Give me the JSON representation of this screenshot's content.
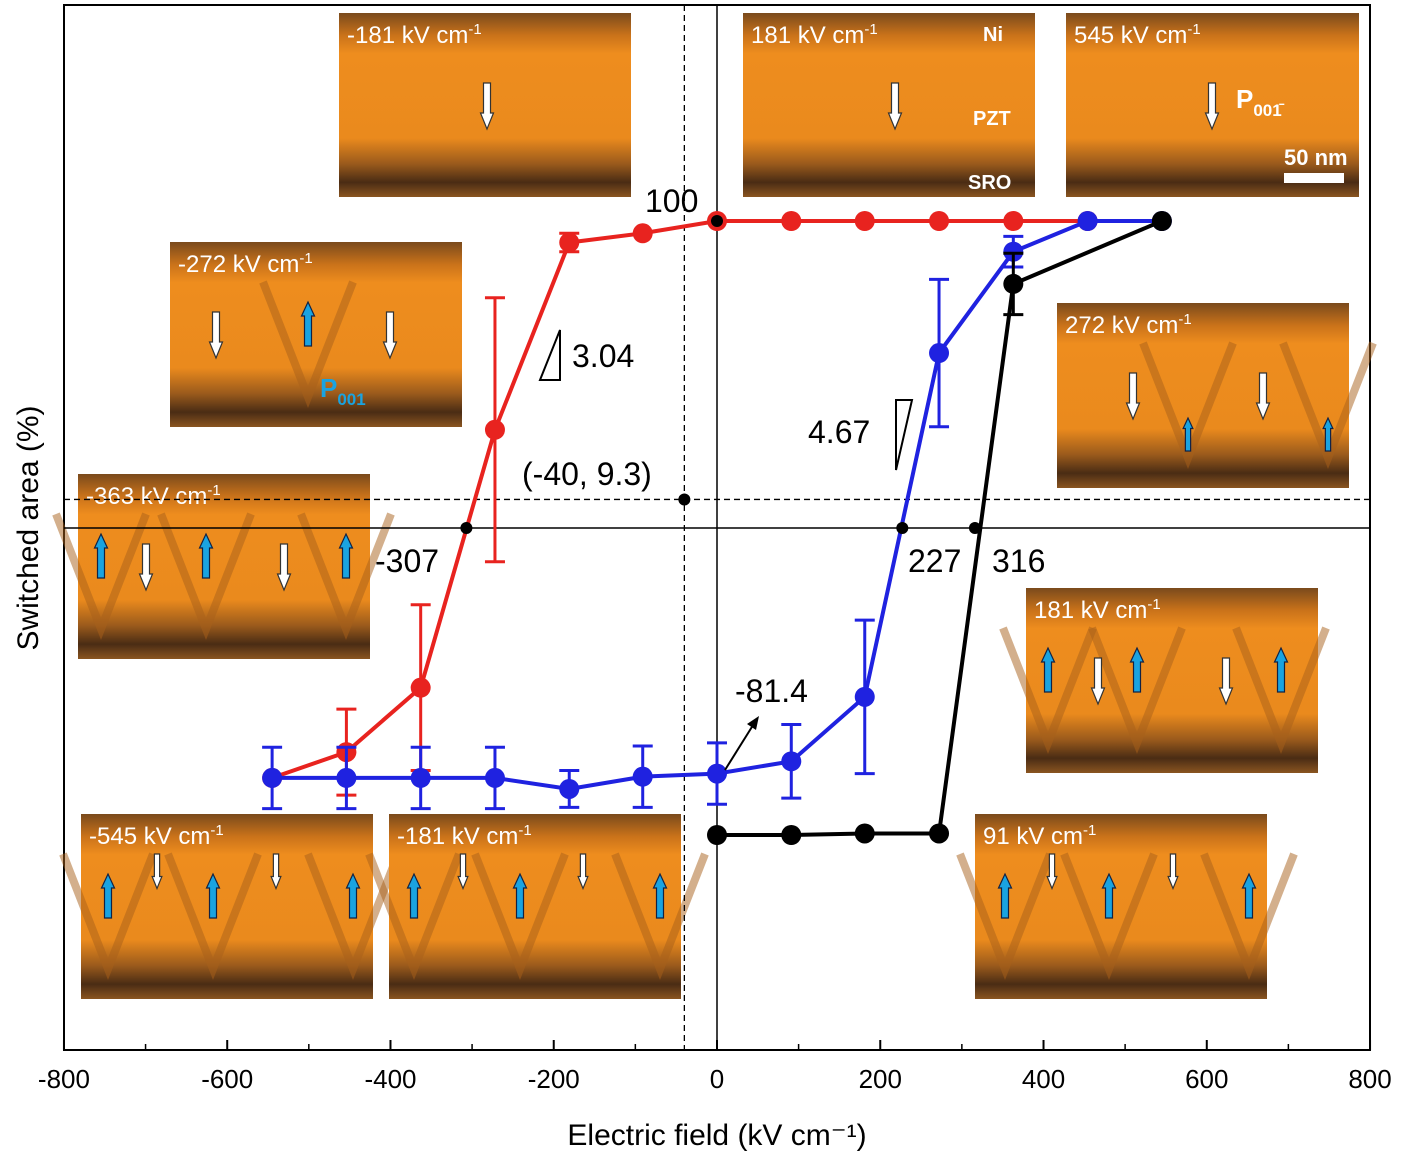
{
  "chart_data": {
    "type": "line",
    "title": "",
    "xlabel": "Electric field (kV cm⁻¹)",
    "ylabel": "Switched area (%)",
    "xlim": [
      -800,
      800
    ],
    "ylim": [
      -118,
      118
    ],
    "x_ticks": [
      "-800",
      "-600",
      "-400",
      "-200",
      "0",
      "200",
      "400",
      "600",
      "800"
    ],
    "grid": false,
    "colors": {
      "red": "#e8231f",
      "blue": "#1f22e0",
      "black": "#000000",
      "inset": "#e88a1c",
      "p_up": "#1aa3e0"
    },
    "series": [
      {
        "name": "red",
        "color": "#e8231f",
        "x": [
          -545,
          -454,
          -363,
          -272,
          -181,
          -91,
          0,
          91,
          181,
          272,
          363,
          454
        ],
        "y": [
          -81.4,
          -73,
          -52,
          32,
          93,
          96,
          100,
          100,
          100,
          100,
          100,
          100
        ],
        "err": [
          0,
          14,
          27,
          43,
          3,
          0,
          0,
          0,
          0,
          0,
          0,
          0
        ]
      },
      {
        "name": "blue",
        "color": "#1f22e0",
        "x": [
          -545,
          -454,
          -363,
          -272,
          -181,
          -91,
          0,
          91,
          181,
          272,
          363,
          454,
          545
        ],
        "y": [
          -81.4,
          -81.4,
          -81.4,
          -81.4,
          -85,
          -81,
          -80,
          -76,
          -55,
          57,
          90,
          100,
          100
        ],
        "err": [
          10,
          10,
          10,
          10,
          6,
          10,
          10,
          12,
          25,
          24,
          5,
          0,
          0
        ]
      },
      {
        "name": "black",
        "color": "#000000",
        "x": [
          0,
          91,
          181,
          272,
          363,
          545
        ],
        "y": [
          -100,
          -100,
          -99.5,
          -99.5,
          79.5,
          100
        ],
        "err": [
          0,
          0,
          0,
          0,
          10,
          0
        ]
      }
    ],
    "annotations": {
      "top": "100",
      "slope_left": "3.04",
      "slope_right": "4.67",
      "offset_point": "(-40, 9.3)",
      "coercive_neg": "-307",
      "coercive_blue": "227",
      "coercive_black": "316",
      "initial": "-81.4"
    },
    "reference_lines": {
      "offset_x": -40,
      "offset_y": 9.3
    },
    "insets": [
      {
        "label": "-181 kV cm",
        "sup": "-1"
      },
      {
        "label": "181 kV cm",
        "sup": "-1",
        "layers": [
          "Ni",
          "PZT",
          "SRO"
        ]
      },
      {
        "label": "545 kV cm",
        "sup": "-1",
        "polarization": "P",
        "pol_sub": "001̄",
        "scale_bar": "50 nm"
      },
      {
        "label": "-272 kV cm",
        "sup": "-1",
        "polarization": "P",
        "pol_sub": "001"
      },
      {
        "label": "272 kV cm",
        "sup": "-1"
      },
      {
        "label": "-363 kV cm",
        "sup": "-1"
      },
      {
        "label": "181 kV cm",
        "sup": "-1"
      },
      {
        "label": "-545 kV cm",
        "sup": "-1"
      },
      {
        "label": "-181 kV cm",
        "sup": "-1"
      },
      {
        "label": "91 kV cm",
        "sup": "-1"
      }
    ]
  }
}
